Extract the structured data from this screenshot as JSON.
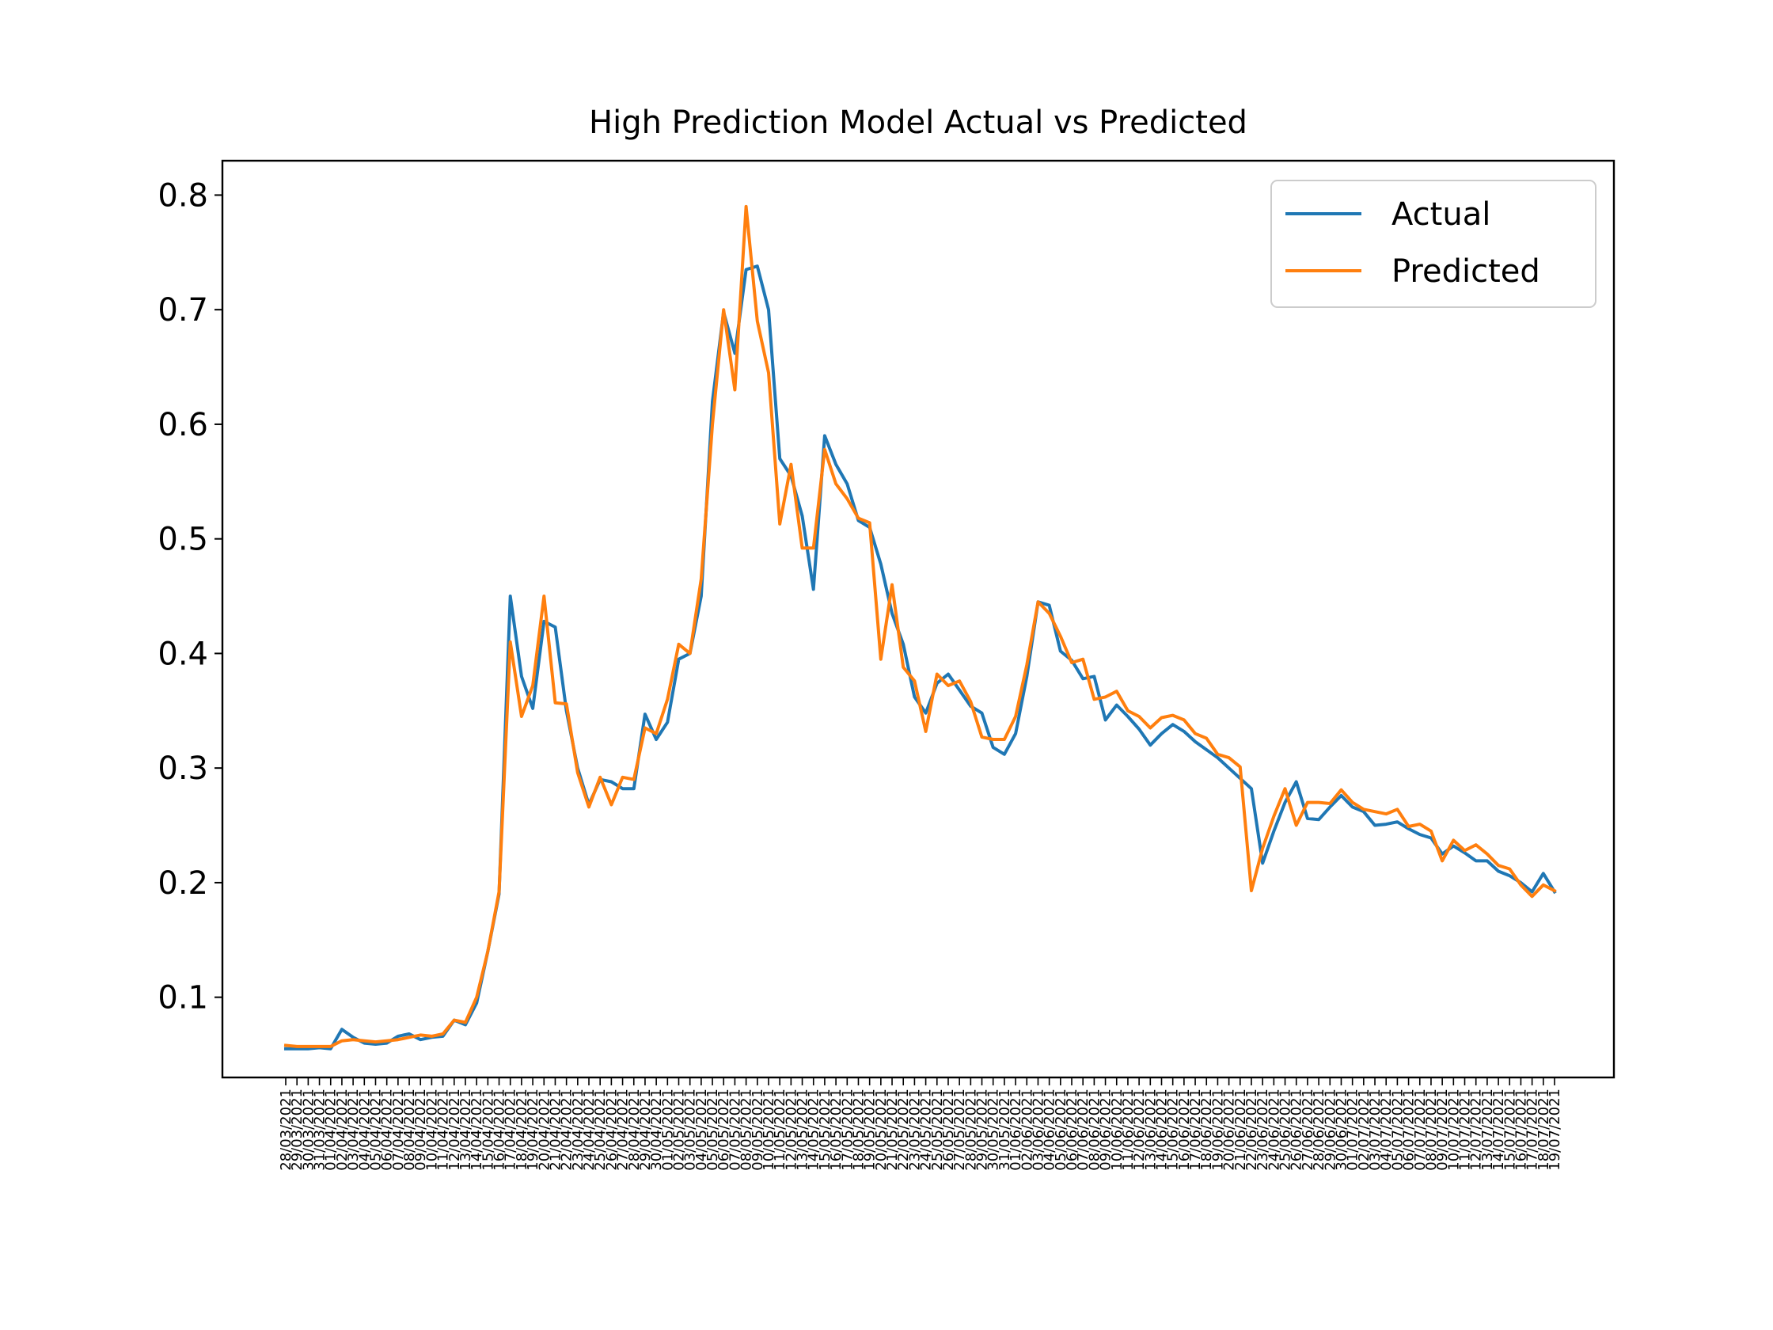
{
  "chart_data": {
    "type": "line",
    "title": "High Prediction Model Actual vs Predicted",
    "xlabel": "",
    "ylabel": "",
    "ylim": [
      0.03,
      0.83
    ],
    "yticks": [
      0.1,
      0.2,
      0.3,
      0.4,
      0.5,
      0.6,
      0.7,
      0.8
    ],
    "ytick_labels": [
      "0.1",
      "0.2",
      "0.3",
      "0.4",
      "0.5",
      "0.6",
      "0.7",
      "0.8"
    ],
    "grid": false,
    "legend": {
      "placement": "top-right"
    },
    "x_labels": [
      "28/03/2021",
      "29/03/2021",
      "30/03/2021",
      "31/03/2021",
      "01/04/2021",
      "02/04/2021",
      "03/04/2021",
      "04/04/2021",
      "05/04/2021",
      "06/04/2021",
      "07/04/2021",
      "08/04/2021",
      "09/04/2021",
      "10/04/2021",
      "11/04/2021",
      "12/04/2021",
      "13/04/2021",
      "14/04/2021",
      "15/04/2021",
      "16/04/2021",
      "17/04/2021",
      "18/04/2021",
      "19/04/2021",
      "20/04/2021",
      "21/04/2021",
      "22/04/2021",
      "23/04/2021",
      "24/04/2021",
      "25/04/2021",
      "26/04/2021",
      "27/04/2021",
      "28/04/2021",
      "29/04/2021",
      "30/04/2021",
      "01/05/2021",
      "02/05/2021",
      "03/05/2021",
      "04/05/2021",
      "05/05/2021",
      "06/05/2021",
      "07/05/2021",
      "08/05/2021",
      "09/05/2021",
      "10/05/2021",
      "11/05/2021",
      "12/05/2021",
      "13/05/2021",
      "14/05/2021",
      "15/05/2021",
      "16/05/2021",
      "17/05/2021",
      "18/05/2021",
      "19/05/2021",
      "20/05/2021",
      "21/05/2021",
      "22/05/2021",
      "23/05/2021",
      "24/05/2021",
      "25/05/2021",
      "26/05/2021",
      "27/05/2021",
      "28/05/2021",
      "29/05/2021",
      "30/05/2021",
      "31/05/2021",
      "01/06/2021",
      "02/06/2021",
      "03/06/2021",
      "04/06/2021",
      "05/06/2021",
      "06/06/2021",
      "07/06/2021",
      "08/06/2021",
      "09/06/2021",
      "10/06/2021",
      "11/06/2021",
      "12/06/2021",
      "13/06/2021",
      "14/06/2021",
      "15/06/2021",
      "16/06/2021",
      "17/06/2021",
      "18/06/2021",
      "19/06/2021",
      "20/06/2021",
      "21/06/2021",
      "22/06/2021",
      "23/06/2021",
      "24/06/2021",
      "25/06/2021",
      "26/06/2021",
      "27/06/2021",
      "28/06/2021",
      "29/06/2021",
      "30/06/2021",
      "01/07/2021",
      "02/07/2021",
      "03/07/2021",
      "04/07/2021",
      "05/07/2021",
      "06/07/2021",
      "07/07/2021",
      "08/07/2021",
      "09/07/2021",
      "10/07/2021",
      "11/07/2021",
      "12/07/2021",
      "13/07/2021",
      "14/07/2021",
      "15/07/2021",
      "16/07/2021",
      "17/07/2021",
      "18/07/2021",
      "19/07/2021"
    ],
    "series": [
      {
        "name": "Actual",
        "color": "#1f77b4",
        "values": [
          0.055,
          0.055,
          0.055,
          0.056,
          0.055,
          0.072,
          0.065,
          0.06,
          0.059,
          0.06,
          0.066,
          0.068,
          0.063,
          0.065,
          0.066,
          0.08,
          0.076,
          0.095,
          0.14,
          0.19,
          0.45,
          0.38,
          0.352,
          0.428,
          0.423,
          0.35,
          0.3,
          0.268,
          0.29,
          0.288,
          0.282,
          0.282,
          0.347,
          0.325,
          0.34,
          0.395,
          0.4,
          0.45,
          0.62,
          0.698,
          0.662,
          0.735,
          0.738,
          0.7,
          0.57,
          0.555,
          0.52,
          0.456,
          0.59,
          0.565,
          0.548,
          0.516,
          0.51,
          0.478,
          0.435,
          0.408,
          0.362,
          0.348,
          0.374,
          0.382,
          0.368,
          0.354,
          0.348,
          0.318,
          0.312,
          0.33,
          0.38,
          0.445,
          0.442,
          0.402,
          0.394,
          0.378,
          0.38,
          0.342,
          0.355,
          0.345,
          0.334,
          0.32,
          0.33,
          0.338,
          0.332,
          0.323,
          0.316,
          0.309,
          0.3,
          0.291,
          0.282,
          0.217,
          0.245,
          0.27,
          0.288,
          0.256,
          0.255,
          0.266,
          0.276,
          0.266,
          0.262,
          0.25,
          0.251,
          0.253,
          0.247,
          0.242,
          0.239,
          0.225,
          0.232,
          0.226,
          0.219,
          0.219,
          0.21,
          0.206,
          0.2,
          0.192,
          0.208,
          0.192
        ]
      },
      {
        "name": "Predicted",
        "color": "#ff7f0e",
        "values": [
          0.058,
          0.057,
          0.057,
          0.057,
          0.057,
          0.062,
          0.063,
          0.062,
          0.061,
          0.062,
          0.063,
          0.065,
          0.067,
          0.066,
          0.068,
          0.08,
          0.078,
          0.1,
          0.14,
          0.192,
          0.41,
          0.345,
          0.372,
          0.45,
          0.357,
          0.356,
          0.296,
          0.266,
          0.292,
          0.268,
          0.292,
          0.29,
          0.335,
          0.33,
          0.36,
          0.408,
          0.4,
          0.465,
          0.6,
          0.7,
          0.63,
          0.79,
          0.69,
          0.645,
          0.513,
          0.565,
          0.492,
          0.492,
          0.578,
          0.548,
          0.535,
          0.518,
          0.514,
          0.395,
          0.46,
          0.388,
          0.376,
          0.332,
          0.382,
          0.372,
          0.376,
          0.358,
          0.327,
          0.325,
          0.325,
          0.345,
          0.39,
          0.445,
          0.435,
          0.415,
          0.392,
          0.395,
          0.36,
          0.362,
          0.367,
          0.35,
          0.345,
          0.335,
          0.344,
          0.346,
          0.342,
          0.33,
          0.326,
          0.312,
          0.309,
          0.301,
          0.193,
          0.23,
          0.258,
          0.282,
          0.25,
          0.27,
          0.27,
          0.269,
          0.281,
          0.27,
          0.264,
          0.262,
          0.26,
          0.264,
          0.249,
          0.251,
          0.245,
          0.219,
          0.237,
          0.228,
          0.233,
          0.225,
          0.215,
          0.212,
          0.198,
          0.188,
          0.198,
          0.193
        ]
      }
    ]
  }
}
